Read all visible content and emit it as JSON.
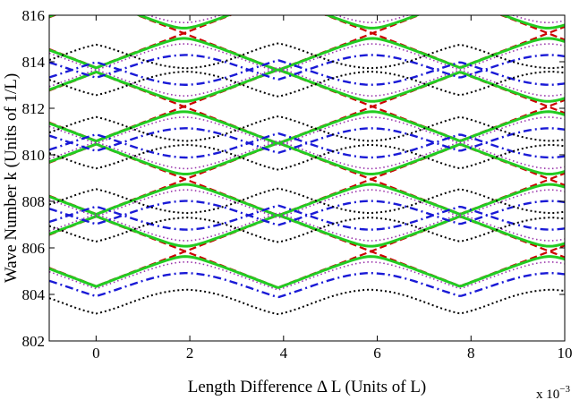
{
  "chart_data": {
    "type": "line",
    "title": "",
    "xlabel": "Length Difference Δ L (Units of L)",
    "ylabel": "Wave Number k (Units of 1/L)",
    "x_exponent_base": "x 10",
    "x_exponent_power": "−3",
    "xlim": [
      -1,
      10
    ],
    "ylim": [
      802,
      816
    ],
    "xticks": [
      0,
      2,
      4,
      6,
      8,
      10
    ],
    "yticks": [
      802,
      804,
      806,
      808,
      810,
      812,
      814,
      816
    ],
    "xtick_labels": [
      "0",
      "2",
      "4",
      "6",
      "8",
      "10"
    ],
    "ytick_labels": [
      "802",
      "804",
      "806",
      "808",
      "810",
      "812",
      "814",
      "816"
    ],
    "grid": false,
    "model": {
      "period": 7.77,
      "slope": 0.783,
      "crossings": [
        804.3,
        807.4,
        810.5,
        813.65,
        816.8
      ]
    },
    "series": [
      {
        "color": "#cc0000",
        "dash": "8,4",
        "width": 2.2,
        "half_gap": 0.0,
        "round": 0.0
      },
      {
        "color": "#22cc22",
        "dash": "",
        "width": 3.0,
        "half_gap": 0.22,
        "round": 0.02
      },
      {
        "color": "#9933aa",
        "dash": "1.5,3",
        "width": 1.6,
        "half_gap": 0.45,
        "round": 0.15
      },
      {
        "color": "#1a1ad6",
        "dash": "9,4,2,4",
        "width": 2.4,
        "half_gap": 0.92,
        "round": 0.3
      },
      {
        "color": "#000000",
        "dash": "2,3",
        "width": 2.0,
        "half_gap": 1.62,
        "round": 0.6
      }
    ]
  }
}
